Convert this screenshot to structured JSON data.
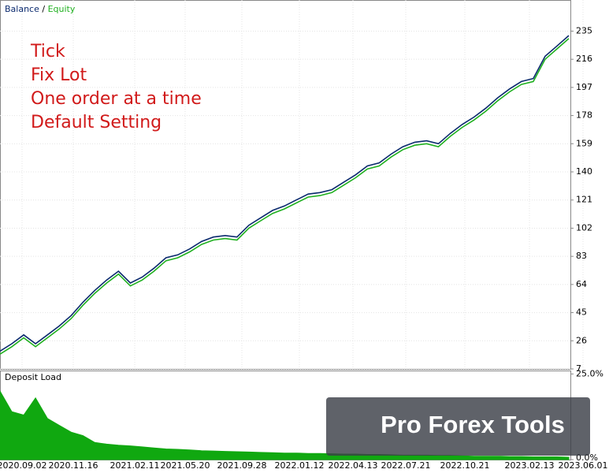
{
  "watermark": "Pro Forex Tools",
  "chart_data": [
    {
      "type": "line",
      "legend_separator": "/",
      "annotations": [
        "Tick",
        "Fix Lot",
        "One order at a time",
        "Default Setting"
      ],
      "ylim": [
        7,
        256
      ],
      "yticks": [
        7,
        26,
        45,
        64,
        83,
        102,
        121,
        140,
        159,
        178,
        197,
        216,
        235
      ],
      "grid": true,
      "series": [
        {
          "name": "Balance",
          "color": "#0b2a6e",
          "values": [
            19,
            24,
            30,
            24,
            30,
            36,
            43,
            52,
            60,
            67,
            73,
            65,
            69,
            75,
            82,
            84,
            88,
            93,
            96,
            97,
            96,
            104,
            109,
            114,
            117,
            121,
            125,
            126,
            128,
            133,
            138,
            144,
            146,
            152,
            157,
            160,
            161,
            159,
            166,
            172,
            177,
            183,
            190,
            196,
            201,
            203,
            218,
            225,
            232
          ]
        },
        {
          "name": "Equity",
          "color": "#1fb01f",
          "values": [
            17,
            22,
            28,
            22,
            28,
            34,
            41,
            50,
            58,
            65,
            71,
            63,
            67,
            73,
            80,
            82,
            86,
            91,
            94,
            95,
            94,
            102,
            107,
            112,
            115,
            119,
            123,
            124,
            126,
            131,
            136,
            142,
            144,
            150,
            155,
            158,
            159,
            157,
            164,
            170,
            175,
            181,
            188,
            194,
            199,
            201,
            216,
            223,
            230
          ]
        }
      ]
    },
    {
      "type": "area",
      "title": "Deposit Load",
      "color": "#10a810",
      "ylim": [
        0,
        26
      ],
      "yticks": [
        {
          "value": 0,
          "label": "0.0%"
        },
        {
          "value": 25,
          "label": "25.0%"
        }
      ],
      "x_tick_labels": [
        "2020.09.02",
        "2020.11.16",
        "2021.02.11",
        "2021.05.20",
        "2021.09.28",
        "2022.01.12",
        "2022.04.13",
        "2022.07.21",
        "2022.10.21",
        "2023.02.13",
        "2023.06.01"
      ],
      "values": [
        20,
        14,
        13,
        18,
        12,
        10,
        8,
        7,
        5,
        4.5,
        4.2,
        4,
        3.7,
        3.4,
        3.1,
        3,
        2.8,
        2.6,
        2.5,
        2.4,
        2.3,
        2.2,
        2.1,
        2,
        1.9,
        1.9,
        1.8,
        1.8,
        1.7,
        1.6,
        1.6,
        1.5,
        1.5,
        1.4,
        1.3,
        1.3,
        1.3,
        1.2,
        1.2,
        1.1,
        1.0,
        1.0,
        1.0,
        0.9,
        0.9,
        0.8,
        0.8,
        0.8,
        0.7
      ]
    }
  ]
}
